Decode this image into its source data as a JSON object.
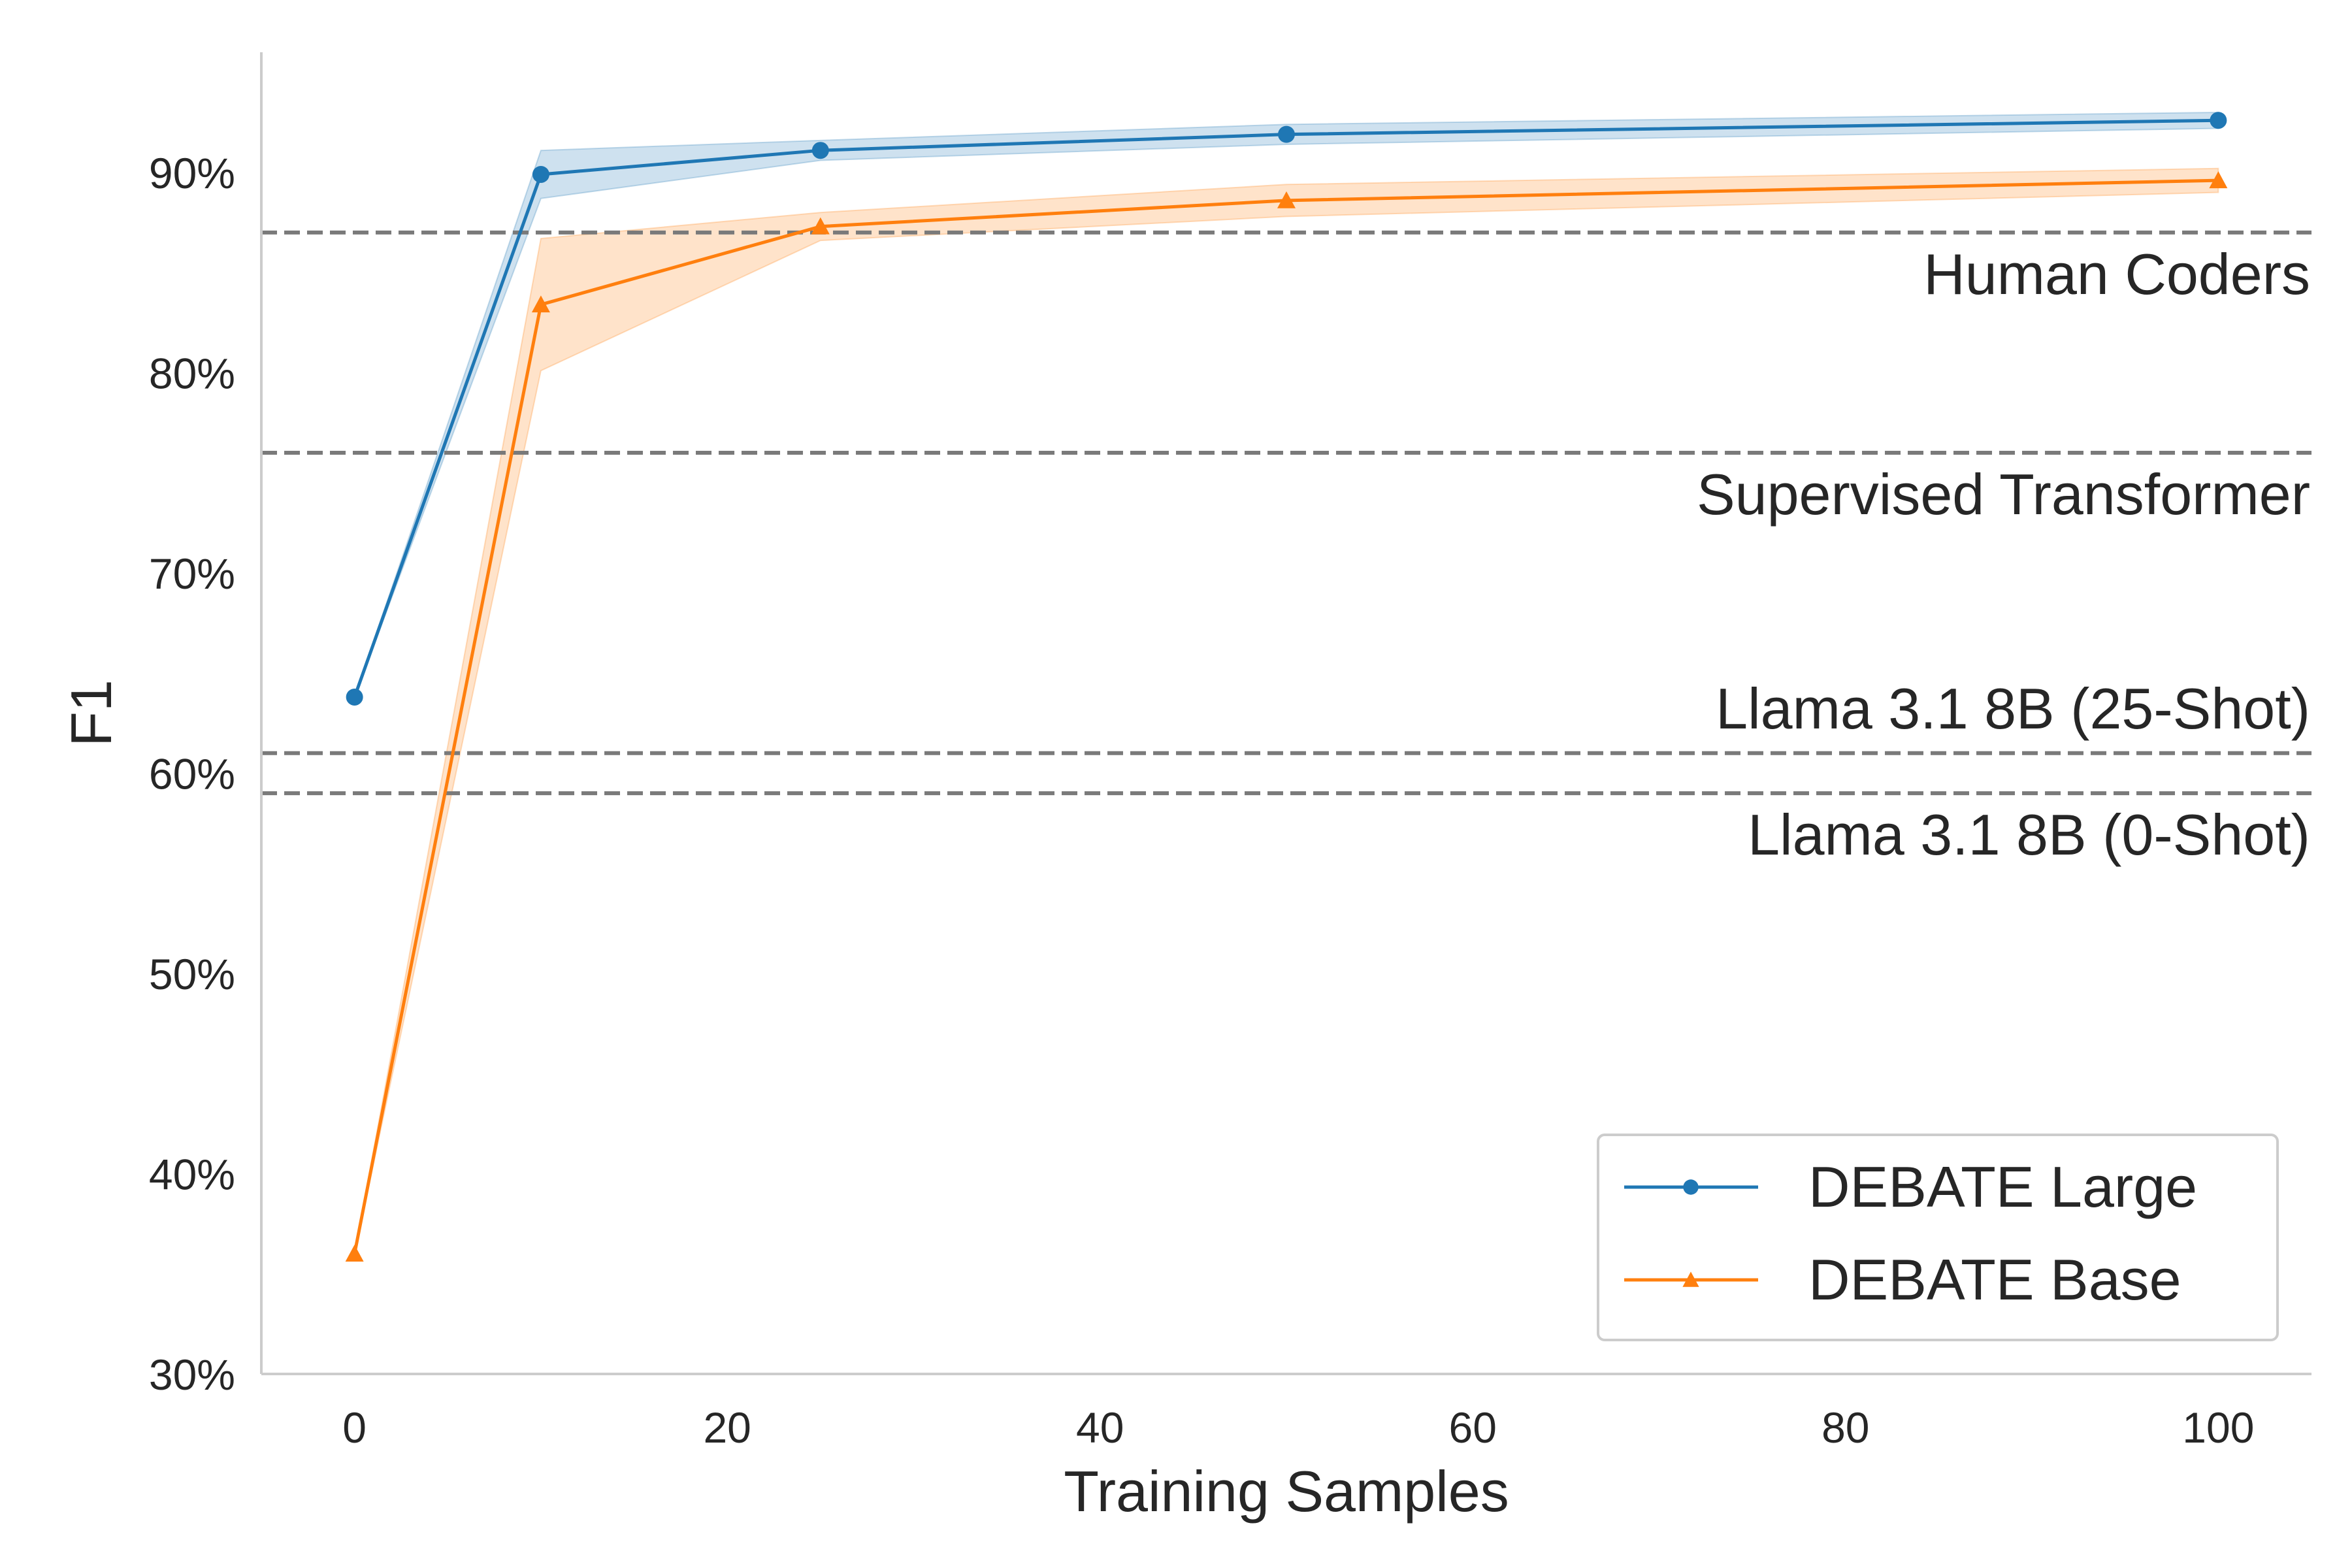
{
  "chart_data": {
    "type": "line",
    "title": "",
    "xlabel": "Training Samples",
    "ylabel": "F1",
    "xlim": [
      -5,
      105
    ],
    "ylim": [
      30,
      96
    ],
    "xticks": [
      0,
      20,
      40,
      60,
      80,
      100
    ],
    "xtick_labels": [
      "0",
      "20",
      "40",
      "60",
      "80",
      "100"
    ],
    "yticks": [
      30,
      40,
      50,
      60,
      70,
      80,
      90
    ],
    "ytick_labels": [
      "30%",
      "40%",
      "50%",
      "60%",
      "70%",
      "80%",
      "90%"
    ],
    "grid": false,
    "legend_position": "bottom-right",
    "series": [
      {
        "name": "DEBATE Large",
        "color": "#1f77b4",
        "marker": "circle",
        "x": [
          0,
          10,
          25,
          50,
          100
        ],
        "y": [
          63.8,
          89.9,
          91.1,
          91.9,
          92.6
        ],
        "ci_low": [
          63.8,
          88.7,
          90.6,
          91.4,
          92.2
        ],
        "ci_high": [
          63.8,
          91.1,
          91.6,
          92.4,
          93.0
        ]
      },
      {
        "name": "DEBATE Base",
        "color": "#ff7f0e",
        "marker": "triangle",
        "x": [
          0,
          10,
          25,
          50,
          100
        ],
        "y": [
          36.0,
          83.4,
          87.3,
          88.6,
          89.6
        ],
        "ci_low": [
          36.0,
          80.1,
          86.6,
          87.8,
          89.0
        ],
        "ci_high": [
          36.0,
          86.7,
          88.0,
          89.4,
          90.2
        ]
      }
    ],
    "reference_lines": [
      {
        "label": "Human Coders",
        "y": 87.0,
        "label_position": "below"
      },
      {
        "label": "Supervised Transformer",
        "y": 76.0,
        "label_position": "below"
      },
      {
        "label": "Llama 3.1 8B (25-Shot)",
        "y": 61.0,
        "label_position": "above"
      },
      {
        "label": "Llama 3.1 8B (0-Shot)",
        "y": 59.0,
        "label_position": "below"
      }
    ]
  }
}
